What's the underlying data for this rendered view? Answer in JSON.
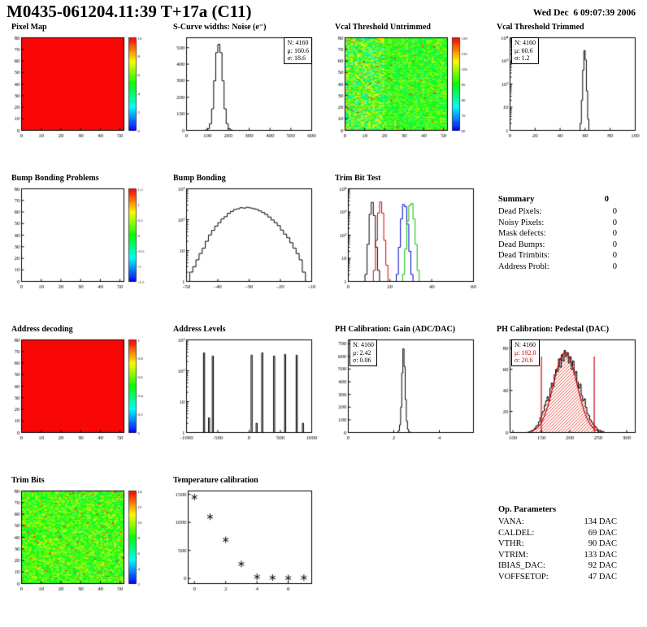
{
  "page": {
    "title": "M0435-061204.11:39 T+17a (C11)",
    "datetime": "Wed Dec  6 09:07:39 2006"
  },
  "summary": {
    "title": "Summary",
    "value": "0",
    "items": [
      {
        "label": "Dead Pixels:",
        "value": "0"
      },
      {
        "label": "Noisy Pixels:",
        "value": "0"
      },
      {
        "label": "Mask defects:",
        "value": "0"
      },
      {
        "label": "Dead Bumps:",
        "value": "0"
      },
      {
        "label": "Dead Trimbits:",
        "value": "0"
      },
      {
        "label": "Address Probl:",
        "value": "0"
      }
    ]
  },
  "op_parameters": {
    "title": "Op. Parameters",
    "items": [
      {
        "label": "VANA:",
        "value": "134 DAC"
      },
      {
        "label": "CALDEL:",
        "value": "69 DAC"
      },
      {
        "label": "VTHR:",
        "value": "90 DAC"
      },
      {
        "label": "VTRIM:",
        "value": "133 DAC"
      },
      {
        "label": "IBIAS_DAC:",
        "value": "92 DAC"
      },
      {
        "label": "VOFFSETOP:",
        "value": "47 DAC"
      }
    ]
  },
  "chart_data": [
    {
      "id": "pixel_map",
      "title": "Pixel Map",
      "type": "heatmap",
      "style": "solid",
      "fill_value": 1.0,
      "nx": 52,
      "ny": 80,
      "xmin": 0,
      "xmax": 52,
      "ymin": 0,
      "ymax": 80,
      "xticks": [
        0,
        10,
        20,
        30,
        40,
        50
      ],
      "yticks": [
        0,
        10,
        20,
        30,
        40,
        50,
        60,
        70,
        80
      ],
      "colorbar_ticks": [
        "10",
        "8",
        "6",
        "4",
        "2",
        "0"
      ]
    },
    {
      "id": "scurve_noise",
      "title": "S-Curve widths: Noise (e⁻)",
      "type": "hist",
      "xmin": 0,
      "xmax": 600,
      "ymin": 0,
      "ymax": 560,
      "xticks": [
        0,
        100,
        200,
        300,
        400,
        500,
        600
      ],
      "yticks": [
        0,
        100,
        200,
        300,
        400,
        500
      ],
      "bins": {
        "xstart": 90,
        "binw": 10,
        "values": [
          2,
          10,
          40,
          130,
          300,
          470,
          520,
          470,
          300,
          130,
          40,
          10,
          2
        ]
      },
      "stats": {
        "n": "N: 4160",
        "mu": "μ: 160.6",
        "sigma": "σ: 18.6"
      }
    },
    {
      "id": "vcal_threshold_untrimmed",
      "title": "Vcal Threshold Untrimmed",
      "type": "heatmap",
      "style": "noise",
      "base": 0.52,
      "spread": 0.3,
      "hot_cols": 20,
      "hot_spread": 0.55,
      "specks": 0.015,
      "seed": 13,
      "nx": 52,
      "ny": 80,
      "xmin": 0,
      "xmax": 52,
      "ymin": 0,
      "ymax": 80,
      "xticks": [
        0,
        10,
        20,
        30,
        40,
        50
      ],
      "yticks": [
        0,
        10,
        20,
        30,
        40,
        50,
        60,
        70,
        80
      ],
      "colorbar_ticks": [
        "120",
        "110",
        "100",
        "90",
        "80",
        "70",
        "60"
      ]
    },
    {
      "id": "vcal_threshold_trimmed",
      "title": "Vcal Threshold Trimmed",
      "type": "histlog",
      "xmin": 0,
      "xmax": 100,
      "ylogmax": 4,
      "xticks": [
        0,
        20,
        40,
        60,
        80,
        100
      ],
      "bins": {
        "xstart": 56,
        "binw": 1,
        "values": [
          2,
          20,
          400,
          2800,
          1100,
          50,
          3
        ]
      },
      "stats": {
        "n": "N: 4160",
        "mu": "μ: 60.6",
        "sigma": "σ: 1.2"
      }
    },
    {
      "id": "bump_bonding_problems",
      "title": "Bump Bonding Problems",
      "type": "heatmap",
      "style": "empty",
      "nx": 52,
      "ny": 80,
      "xmin": 0,
      "xmax": 52,
      "ymin": 0,
      "ymax": 80,
      "xticks": [
        0,
        10,
        20,
        30,
        40,
        50
      ],
      "yticks": [
        0,
        10,
        20,
        30,
        40,
        50,
        60,
        70,
        80
      ],
      "colorbar_ticks": [
        "1.5",
        "1",
        "0.5",
        "0",
        "-0.5",
        "-1",
        "-1.5"
      ]
    },
    {
      "id": "bump_bonding",
      "title": "Bump Bonding",
      "type": "histlog",
      "xmin": -50,
      "xmax": -10,
      "ylogmax": 3,
      "xticks": [
        -50,
        -40,
        -30,
        -20,
        -10
      ],
      "bins": {
        "xstart": -50,
        "binw": 1,
        "values": [
          1,
          2,
          3,
          5,
          8,
          12,
          20,
          32,
          45,
          62,
          80,
          105,
          125,
          160,
          185,
          215,
          225,
          245,
          238,
          252,
          240,
          228,
          215,
          192,
          170,
          148,
          122,
          98,
          80,
          64,
          46,
          34,
          26,
          18,
          12,
          8,
          5,
          2
        ]
      }
    },
    {
      "id": "trim_bit_test",
      "title": "Trim Bit Test",
      "type": "histlog-multi",
      "xmin": 0,
      "xmax": 60,
      "ylogmax": 4,
      "xticks": [
        0,
        20,
        40,
        60
      ],
      "series": [
        {
          "color": "#000000",
          "bins": {
            "xstart": 8,
            "binw": 1,
            "values": [
              2,
              40,
              800,
              2600,
              700,
              30,
              3
            ]
          }
        },
        {
          "color": "#cc0000",
          "bins": {
            "xstart": 12,
            "binw": 1,
            "values": [
              3,
              60,
              900,
              2700,
              900,
              60,
              5
            ]
          }
        },
        {
          "color": "#0000cc",
          "bins": {
            "xstart": 23,
            "binw": 1,
            "values": [
              2,
              30,
              500,
              2100,
              1700,
              300,
              20,
              2
            ]
          }
        },
        {
          "color": "#00bb00",
          "bins": {
            "xstart": 26,
            "binw": 1,
            "values": [
              2,
              25,
              400,
              1900,
              2300,
              500,
              40,
              3
            ]
          }
        }
      ]
    },
    {
      "id": "address_decoding",
      "title": "Address decoding",
      "type": "heatmap",
      "style": "solid",
      "fill_value": 1.0,
      "nx": 52,
      "ny": 80,
      "xmin": 0,
      "xmax": 52,
      "ymin": 0,
      "ymax": 80,
      "xticks": [
        0,
        10,
        20,
        30,
        40,
        50
      ],
      "yticks": [
        0,
        10,
        20,
        30,
        40,
        50,
        60,
        70,
        80
      ],
      "colorbar_ticks": [
        "1",
        "0.8",
        "0.6",
        "0.4",
        "0.2",
        "0"
      ]
    },
    {
      "id": "address_levels",
      "title": "Address Levels",
      "type": "spikeslog",
      "xmin": -1000,
      "xmax": 1000,
      "ylogmax": 3,
      "xticks": [
        -1000,
        -500,
        0,
        500,
        1000
      ],
      "spikew": 18,
      "spikes": [
        [
          -720,
          380
        ],
        [
          -580,
          300
        ],
        [
          -640,
          3
        ],
        [
          40,
          320
        ],
        [
          210,
          380
        ],
        [
          400,
          300
        ],
        [
          575,
          340
        ],
        [
          760,
          320
        ],
        [
          120,
          2
        ],
        [
          860,
          2
        ]
      ]
    },
    {
      "id": "ph_calibration_gain",
      "title": "PH Calibration: Gain (ADC/DAC)",
      "type": "hist",
      "xmin": 0,
      "xmax": 5.5,
      "ymin": 0,
      "ymax": 730,
      "xticks": [
        0,
        2,
        4
      ],
      "yticks": [
        0,
        100,
        200,
        300,
        400,
        500,
        600,
        700
      ],
      "bins": {
        "xstart": 2.15,
        "binw": 0.05,
        "values": [
          3,
          15,
          60,
          200,
          470,
          660,
          520,
          260,
          90,
          25,
          6
        ]
      },
      "stats": {
        "n": "N: 4160",
        "mu": "μ: 2.42",
        "sigma": "σ: 0.06"
      }
    },
    {
      "id": "ph_calibration_pedestal",
      "title": "PH Calibration: Pedestal (DAC)",
      "type": "hist-fit",
      "xmin": 95,
      "xmax": 315,
      "ymin": 0,
      "ymax": 88,
      "xticks": [
        100,
        150,
        200,
        250,
        300
      ],
      "yticks": [
        0,
        20,
        40,
        60,
        80
      ],
      "bins": {
        "xstart": 130,
        "binw": 2.5,
        "values": [
          1,
          2,
          2,
          4,
          6,
          7,
          10,
          14,
          18,
          20,
          26,
          30,
          34,
          30,
          42,
          47,
          44,
          55,
          60,
          58,
          70,
          62,
          74,
          68,
          78,
          72,
          76,
          66,
          72,
          60,
          68,
          55,
          58,
          48,
          42,
          46,
          35,
          30,
          32,
          24,
          18,
          16,
          12,
          10,
          8,
          6,
          5,
          3,
          2,
          2,
          1,
          1
        ]
      },
      "fit": {
        "mu": 192.0,
        "sigma": 20.6,
        "amp": 76,
        "range": [
          150,
          243
        ],
        "color": "#cc0000"
      },
      "stats": {
        "n": "N: 4160",
        "mu": "μ: 192.0",
        "sigma": "σ: 20.6"
      }
    },
    {
      "id": "trim_bits",
      "title": "Trim Bits",
      "type": "heatmap",
      "style": "noise",
      "base": 0.55,
      "spread": 0.3,
      "specks": 0.03,
      "seed": 29,
      "nx": 52,
      "ny": 80,
      "xmin": 0,
      "xmax": 52,
      "ymin": 0,
      "ymax": 80,
      "xticks": [
        0,
        10,
        20,
        30,
        40,
        50
      ],
      "yticks": [
        0,
        10,
        20,
        30,
        40,
        50,
        60,
        70,
        80
      ],
      "colorbar_ticks": [
        "14",
        "12",
        "10",
        "8",
        "6",
        "4",
        "2"
      ]
    },
    {
      "id": "temperature_calibration",
      "title": "Temperature calibration",
      "type": "scatter",
      "xmin": -0.4,
      "xmax": 7.5,
      "ymin": -90,
      "ymax": 1560,
      "xticks": [
        0,
        2,
        4,
        6
      ],
      "yticks": [
        0,
        500,
        1000,
        1500
      ],
      "points": [
        [
          0,
          1450
        ],
        [
          1,
          1100
        ],
        [
          2,
          690
        ],
        [
          3,
          260
        ],
        [
          4,
          30
        ],
        [
          5,
          15
        ],
        [
          6,
          10
        ],
        [
          7,
          15
        ]
      ]
    }
  ]
}
